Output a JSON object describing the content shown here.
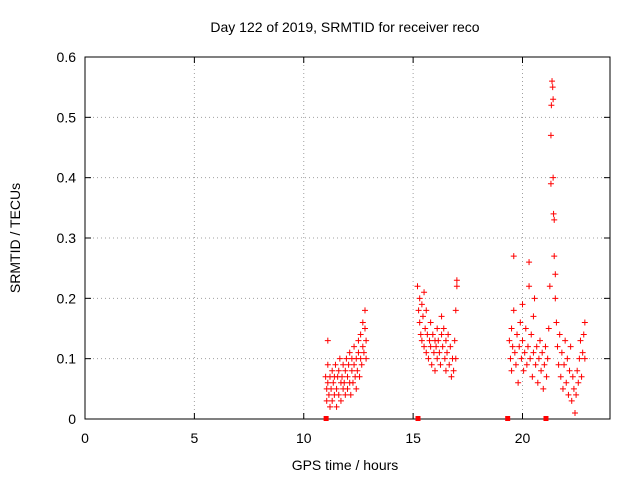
{
  "chart_data": {
    "type": "scatter",
    "title": "Day 122 of 2019, SRMTID for receiver reco",
    "xlabel": "GPS time / hours",
    "ylabel": "SRMTID / TECUs",
    "xlim": [
      0,
      24
    ],
    "ylim": [
      0,
      0.6
    ],
    "xticks": [
      0,
      5,
      10,
      15,
      20
    ],
    "yticks": [
      0,
      0.1,
      0.2,
      0.3,
      0.4,
      0.5,
      0.6
    ],
    "xtick_labels": [
      "0",
      "5",
      "10",
      "15",
      "20"
    ],
    "ytick_labels": [
      "0",
      "0.1",
      "0.2",
      "0.3",
      "0.4",
      "0.5",
      "0.6"
    ],
    "grid": true,
    "marker": "plus",
    "color": "#ff0000",
    "ground_markers_x": [
      11.0,
      15.2,
      19.3,
      21.05
    ],
    "series": [
      {
        "name": "SRMTID",
        "points": [
          [
            11.0,
            0.07
          ],
          [
            11.05,
            0.05
          ],
          [
            11.05,
            0.03
          ],
          [
            11.1,
            0.06
          ],
          [
            11.1,
            0.09
          ],
          [
            11.1,
            0.13
          ],
          [
            11.15,
            0.04
          ],
          [
            11.2,
            0.07
          ],
          [
            11.2,
            0.02
          ],
          [
            11.25,
            0.05
          ],
          [
            11.3,
            0.08
          ],
          [
            11.3,
            0.03
          ],
          [
            11.35,
            0.06
          ],
          [
            11.4,
            0.04
          ],
          [
            11.4,
            0.07
          ],
          [
            11.45,
            0.09
          ],
          [
            11.5,
            0.05
          ],
          [
            11.5,
            0.02
          ],
          [
            11.55,
            0.07
          ],
          [
            11.6,
            0.04
          ],
          [
            11.6,
            0.08
          ],
          [
            11.65,
            0.1
          ],
          [
            11.7,
            0.06
          ],
          [
            11.7,
            0.03
          ],
          [
            11.75,
            0.07
          ],
          [
            11.8,
            0.05
          ],
          [
            11.8,
            0.09
          ],
          [
            11.85,
            0.06
          ],
          [
            11.9,
            0.08
          ],
          [
            11.9,
            0.04
          ],
          [
            11.95,
            0.1
          ],
          [
            12.0,
            0.07
          ],
          [
            12.0,
            0.05
          ],
          [
            12.05,
            0.09
          ],
          [
            12.1,
            0.11
          ],
          [
            12.1,
            0.06
          ],
          [
            12.15,
            0.04
          ],
          [
            12.2,
            0.08
          ],
          [
            12.2,
            0.1
          ],
          [
            12.25,
            0.06
          ],
          [
            12.3,
            0.09
          ],
          [
            12.3,
            0.12
          ],
          [
            12.35,
            0.07
          ],
          [
            12.4,
            0.1
          ],
          [
            12.4,
            0.05
          ],
          [
            12.45,
            0.08
          ],
          [
            12.5,
            0.11
          ],
          [
            12.5,
            0.13
          ],
          [
            12.55,
            0.07
          ],
          [
            12.6,
            0.1
          ],
          [
            12.6,
            0.14
          ],
          [
            12.65,
            0.09
          ],
          [
            12.7,
            0.12
          ],
          [
            12.7,
            0.16
          ],
          [
            12.75,
            0.11
          ],
          [
            12.8,
            0.15
          ],
          [
            12.8,
            0.18
          ],
          [
            12.85,
            0.1
          ],
          [
            12.85,
            0.13
          ],
          [
            15.2,
            0.22
          ],
          [
            15.25,
            0.18
          ],
          [
            15.3,
            0.2
          ],
          [
            15.3,
            0.16
          ],
          [
            15.35,
            0.14
          ],
          [
            15.4,
            0.19
          ],
          [
            15.4,
            0.13
          ],
          [
            15.45,
            0.17
          ],
          [
            15.5,
            0.12
          ],
          [
            15.5,
            0.21
          ],
          [
            15.55,
            0.15
          ],
          [
            15.6,
            0.11
          ],
          [
            15.6,
            0.18
          ],
          [
            15.65,
            0.14
          ],
          [
            15.7,
            0.1
          ],
          [
            15.75,
            0.13
          ],
          [
            15.8,
            0.16
          ],
          [
            15.8,
            0.12
          ],
          [
            15.85,
            0.09
          ],
          [
            15.9,
            0.14
          ],
          [
            15.95,
            0.11
          ],
          [
            16.0,
            0.13
          ],
          [
            16.0,
            0.08
          ],
          [
            16.05,
            0.12
          ],
          [
            16.1,
            0.15
          ],
          [
            16.1,
            0.1
          ],
          [
            16.15,
            0.13
          ],
          [
            16.2,
            0.11
          ],
          [
            16.25,
            0.09
          ],
          [
            16.3,
            0.14
          ],
          [
            16.3,
            0.17
          ],
          [
            16.35,
            0.12
          ],
          [
            16.4,
            0.15
          ],
          [
            16.45,
            0.1
          ],
          [
            16.5,
            0.13
          ],
          [
            16.5,
            0.08
          ],
          [
            16.55,
            0.11
          ],
          [
            16.6,
            0.14
          ],
          [
            16.65,
            0.09
          ],
          [
            16.7,
            0.12
          ],
          [
            16.75,
            0.07
          ],
          [
            16.8,
            0.1
          ],
          [
            16.85,
            0.08
          ],
          [
            16.9,
            0.13
          ],
          [
            16.95,
            0.18
          ],
          [
            17.0,
            0.22
          ],
          [
            17.0,
            0.23
          ],
          [
            16.95,
            0.1
          ],
          [
            19.4,
            0.13
          ],
          [
            19.45,
            0.1
          ],
          [
            19.5,
            0.15
          ],
          [
            19.5,
            0.08
          ],
          [
            19.55,
            0.12
          ],
          [
            19.6,
            0.18
          ],
          [
            19.6,
            0.27
          ],
          [
            19.65,
            0.11
          ],
          [
            19.7,
            0.09
          ],
          [
            19.75,
            0.14
          ],
          [
            19.8,
            0.06
          ],
          [
            19.85,
            0.12
          ],
          [
            19.9,
            0.16
          ],
          [
            19.95,
            0.1
          ],
          [
            20.0,
            0.13
          ],
          [
            20.0,
            0.19
          ],
          [
            20.05,
            0.08
          ],
          [
            20.1,
            0.11
          ],
          [
            20.15,
            0.15
          ],
          [
            20.2,
            0.09
          ],
          [
            20.25,
            0.12
          ],
          [
            20.3,
            0.26
          ],
          [
            20.3,
            0.22
          ],
          [
            20.35,
            0.1
          ],
          [
            20.4,
            0.14
          ],
          [
            20.45,
            0.07
          ],
          [
            20.5,
            0.11
          ],
          [
            20.5,
            0.17
          ],
          [
            20.55,
            0.2
          ],
          [
            20.6,
            0.09
          ],
          [
            20.65,
            0.12
          ],
          [
            20.7,
            0.06
          ],
          [
            20.75,
            0.1
          ],
          [
            20.8,
            0.13
          ],
          [
            20.85,
            0.08
          ],
          [
            20.9,
            0.11
          ],
          [
            20.95,
            0.05
          ],
          [
            21.0,
            0.09
          ],
          [
            21.05,
            0.12
          ],
          [
            21.1,
            0.07
          ],
          [
            21.15,
            0.1
          ],
          [
            21.2,
            0.15
          ],
          [
            21.25,
            0.22
          ],
          [
            21.3,
            0.39
          ],
          [
            21.3,
            0.47
          ],
          [
            21.32,
            0.52
          ],
          [
            21.35,
            0.56
          ],
          [
            21.38,
            0.55
          ],
          [
            21.4,
            0.53
          ],
          [
            21.4,
            0.4
          ],
          [
            21.42,
            0.34
          ],
          [
            21.45,
            0.33
          ],
          [
            21.45,
            0.27
          ],
          [
            21.5,
            0.24
          ],
          [
            21.5,
            0.2
          ],
          [
            21.55,
            0.16
          ],
          [
            21.6,
            0.12
          ],
          [
            21.65,
            0.09
          ],
          [
            21.7,
            0.14
          ],
          [
            21.75,
            0.07
          ],
          [
            21.8,
            0.11
          ],
          [
            21.85,
            0.05
          ],
          [
            21.9,
            0.09
          ],
          [
            21.95,
            0.13
          ],
          [
            22.0,
            0.06
          ],
          [
            22.05,
            0.1
          ],
          [
            22.1,
            0.04
          ],
          [
            22.15,
            0.08
          ],
          [
            22.2,
            0.12
          ],
          [
            22.25,
            0.03
          ],
          [
            22.3,
            0.07
          ],
          [
            22.35,
            0.05
          ],
          [
            22.4,
            0.01
          ],
          [
            22.45,
            0.04
          ],
          [
            22.5,
            0.08
          ],
          [
            22.55,
            0.06
          ],
          [
            22.6,
            0.1
          ],
          [
            22.65,
            0.13
          ],
          [
            22.7,
            0.07
          ],
          [
            22.75,
            0.11
          ],
          [
            22.8,
            0.14
          ],
          [
            22.85,
            0.16
          ],
          [
            22.85,
            0.1
          ]
        ]
      }
    ]
  }
}
